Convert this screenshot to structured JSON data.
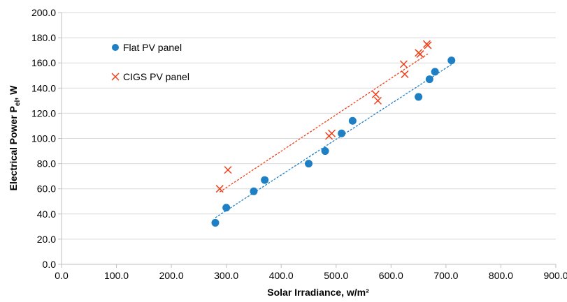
{
  "chart_data": {
    "type": "scatter",
    "xlabel": "Solar Irradiance, w/m²",
    "ylabel_main": "Electrical Power P",
    "ylabel_sub": "el",
    "ylabel_tail": ", W",
    "xlim": [
      0,
      900
    ],
    "ylim": [
      0,
      200
    ],
    "x_ticks": [
      0,
      100,
      200,
      300,
      400,
      500,
      600,
      700,
      800,
      900
    ],
    "y_ticks": [
      0,
      20,
      40,
      60,
      80,
      100,
      120,
      140,
      160,
      180,
      200
    ],
    "x_tick_labels": [
      "0.0",
      "100.0",
      "200.0",
      "300.0",
      "400.0",
      "500.0",
      "600.0",
      "700.0",
      "800.0",
      "900.0"
    ],
    "y_tick_labels": [
      "0.0",
      "20.0",
      "40.0",
      "60.0",
      "80.0",
      "100.0",
      "120.0",
      "140.0",
      "160.0",
      "180.0",
      "200.0"
    ],
    "grid": "horizontal",
    "legend_position": "top-left",
    "series": [
      {
        "name": "Flat PV panel",
        "marker": "circle",
        "color": "#1f7fc4",
        "trendline": true,
        "points": [
          [
            280,
            33
          ],
          [
            300,
            45
          ],
          [
            350,
            58
          ],
          [
            370,
            67
          ],
          [
            450,
            80
          ],
          [
            480,
            90
          ],
          [
            510,
            104
          ],
          [
            530,
            114
          ],
          [
            650,
            133
          ],
          [
            670,
            147
          ],
          [
            680,
            153
          ],
          [
            710,
            162
          ]
        ]
      },
      {
        "name": "CIGS PV panel",
        "marker": "x",
        "color": "#f0401a",
        "trendline": true,
        "points": [
          [
            288,
            60
          ],
          [
            303,
            75
          ],
          [
            487,
            102
          ],
          [
            492,
            104
          ],
          [
            572,
            135
          ],
          [
            576,
            130
          ],
          [
            623,
            159
          ],
          [
            625,
            151
          ],
          [
            650,
            168
          ],
          [
            653,
            167
          ],
          [
            665,
            175
          ],
          [
            667,
            174
          ]
        ]
      }
    ]
  }
}
